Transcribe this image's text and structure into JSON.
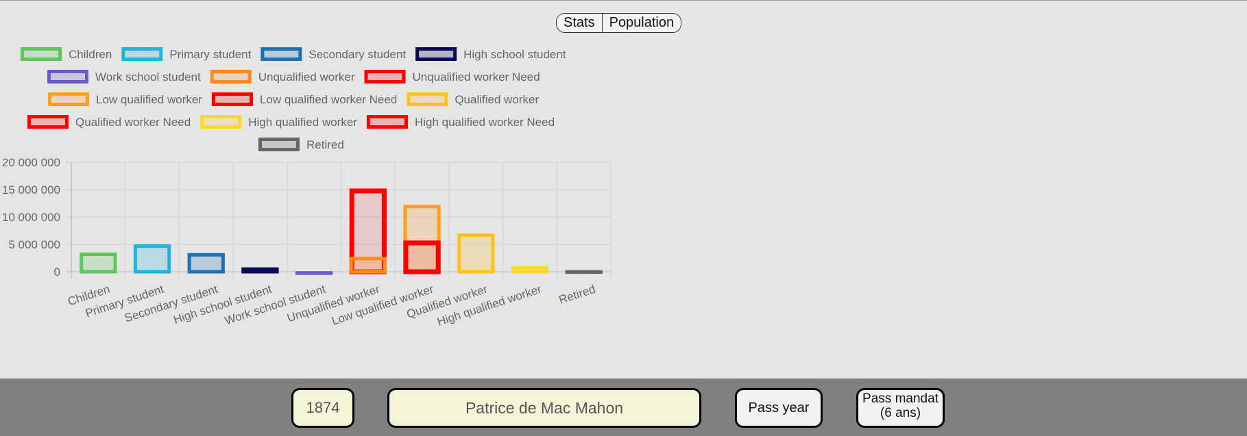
{
  "tabs": [
    {
      "label": "Stats"
    },
    {
      "label": "Population"
    }
  ],
  "footer": {
    "year": "1874",
    "leader": "Patrice de Mac Mahon",
    "pass_year_label": "Pass year",
    "pass_mandat_label": "Pass mandat (6 ans)"
  },
  "chart_data": {
    "type": "bar",
    "categories": [
      "Children",
      "Primary student",
      "Secondary student",
      "High school student",
      "Work school student",
      "Unqualified worker",
      "Low qualified worker",
      "Qualified worker",
      "High qualified worker",
      "Retired"
    ],
    "ylim": [
      0,
      20000000
    ],
    "yticks": [
      {
        "value": 0,
        "label": "0"
      },
      {
        "value": 5000000,
        "label": "5 000 000"
      },
      {
        "value": 10000000,
        "label": "10 000 000"
      },
      {
        "value": 15000000,
        "label": "15 000 000"
      },
      {
        "value": 20000000,
        "label": "20 000 000"
      }
    ],
    "grid": true,
    "legend_position": "top",
    "legend": [
      {
        "label": "Children",
        "color": "#5cc85c"
      },
      {
        "label": "Primary student",
        "color": "#1eb4dc"
      },
      {
        "label": "Secondary student",
        "color": "#1a72b4"
      },
      {
        "label": "High school student",
        "color": "#0a0a5a"
      },
      {
        "label": "Work school student",
        "color": "#6a5acd"
      },
      {
        "label": "Unqualified worker",
        "color": "#ff8c1a"
      },
      {
        "label": "Unqualified worker Need",
        "color": "#ff0000"
      },
      {
        "label": "Low qualified worker",
        "color": "#ff9f1a"
      },
      {
        "label": "Low qualified worker Need",
        "color": "#ff0000"
      },
      {
        "label": "Qualified worker",
        "color": "#ffc020"
      },
      {
        "label": "Qualified worker Need",
        "color": "#ff0000"
      },
      {
        "label": "High qualified worker",
        "color": "#ffd72a"
      },
      {
        "label": "High qualified worker Need",
        "color": "#ff0000"
      },
      {
        "label": "Retired",
        "color": "#666666"
      }
    ],
    "bars": [
      {
        "series": "Children",
        "category": 0,
        "value": 3500000,
        "color": "#5cc85c"
      },
      {
        "series": "Primary student",
        "category": 1,
        "value": 5000000,
        "color": "#1eb4dc"
      },
      {
        "series": "Secondary student",
        "category": 2,
        "value": 3400000,
        "color": "#1a72b4"
      },
      {
        "series": "High school student",
        "category": 3,
        "value": 800000,
        "color": "#0a0a5a"
      },
      {
        "series": "Work school student",
        "category": 4,
        "value": 100000,
        "color": "#6a5acd"
      },
      {
        "series": "Unqualified worker Need",
        "category": 5,
        "value": 15200000,
        "color": "#ff0000"
      },
      {
        "series": "Unqualified worker",
        "category": 5,
        "value": 2700000,
        "color": "#ff8c1a"
      },
      {
        "series": "Low qualified worker",
        "category": 6,
        "value": 12200000,
        "color": "#ff9f1a"
      },
      {
        "series": "Low qualified worker Need",
        "category": 6,
        "value": 5700000,
        "color": "#ff0000"
      },
      {
        "series": "Qualified worker",
        "category": 7,
        "value": 7000000,
        "color": "#ffc020"
      },
      {
        "series": "High qualified worker",
        "category": 8,
        "value": 1000000,
        "color": "#ffd72a"
      },
      {
        "series": "Retired",
        "category": 9,
        "value": 300000,
        "color": "#666666"
      }
    ]
  }
}
